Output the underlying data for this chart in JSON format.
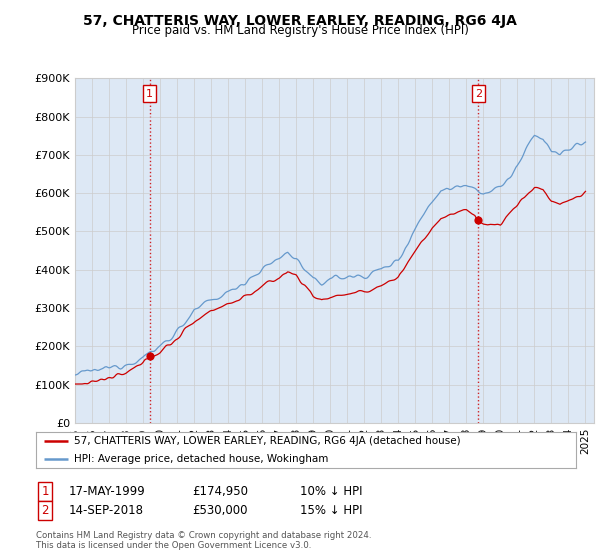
{
  "title": "57, CHATTERIS WAY, LOWER EARLEY, READING, RG6 4JA",
  "subtitle": "Price paid vs. HM Land Registry's House Price Index (HPI)",
  "legend_line1": "57, CHATTERIS WAY, LOWER EARLEY, READING, RG6 4JA (detached house)",
  "legend_line2": "HPI: Average price, detached house, Wokingham",
  "footnote": "Contains HM Land Registry data © Crown copyright and database right 2024.\nThis data is licensed under the Open Government Licence v3.0.",
  "sale1_date": "17-MAY-1999",
  "sale1_price": "£174,950",
  "sale1_note": "10% ↓ HPI",
  "sale2_date": "14-SEP-2018",
  "sale2_price": "£530,000",
  "sale2_note": "15% ↓ HPI",
  "sale1_year": 1999.38,
  "sale1_value": 174950,
  "sale2_year": 2018.71,
  "sale2_value": 530000,
  "vline1_x": 1999.38,
  "vline2_x": 2018.71,
  "ylim_min": 0,
  "ylim_max": 900000,
  "xlim_min": 1995.0,
  "xlim_max": 2025.5,
  "red_color": "#cc0000",
  "blue_color": "#6699cc",
  "blue_fill": "#dde8f5",
  "grid_color": "#cccccc",
  "bg_color": "#ffffff"
}
